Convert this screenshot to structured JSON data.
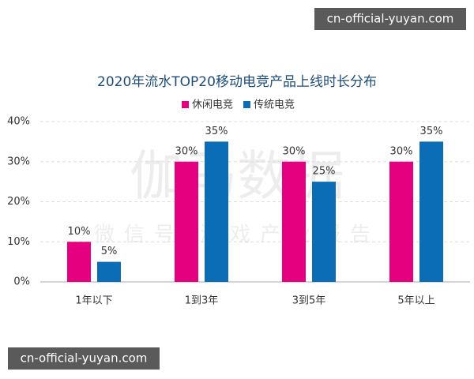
{
  "chart_data": {
    "type": "bar",
    "title": "2020年流水TOP20移动电竞产品上线时长分布",
    "categories": [
      "1年以下",
      "1到3年",
      "3到5年",
      "5年以上"
    ],
    "series": [
      {
        "name": "休闲电竞",
        "color": "#e5007f",
        "values": [
          10,
          30,
          30,
          30
        ],
        "value_labels": [
          "10%",
          "30%",
          "30%",
          "30%"
        ]
      },
      {
        "name": "传统电竞",
        "color": "#0b6db5",
        "values": [
          5,
          35,
          25,
          35
        ],
        "value_labels": [
          "5%",
          "35%",
          "25%",
          "35%"
        ]
      }
    ],
    "ylim": [
      0,
      40
    ],
    "yticks": [
      {
        "value": 0,
        "label": "0%"
      },
      {
        "value": 10,
        "label": "10%"
      },
      {
        "value": 20,
        "label": "20%"
      },
      {
        "value": 30,
        "label": "30%"
      },
      {
        "value": 40,
        "label": "40%"
      }
    ],
    "grid": true,
    "legend": "top"
  },
  "watermarks": {
    "top": "cn-official-yuyan.com",
    "bottom": "cn-official-yuyan.com",
    "logo": "伽马数据",
    "subtitle": "微信号 游戏产业报告"
  }
}
